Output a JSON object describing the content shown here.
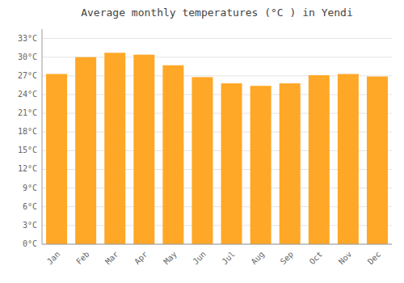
{
  "chart_data": {
    "type": "bar",
    "title": "Average monthly temperatures (°C ) in Yendi",
    "categories": [
      "Jan",
      "Feb",
      "Mar",
      "Apr",
      "May",
      "Jun",
      "Jul",
      "Aug",
      "Sep",
      "Oct",
      "Nov",
      "Dec"
    ],
    "values": [
      27.3,
      30.0,
      30.7,
      30.4,
      28.7,
      26.8,
      25.8,
      25.4,
      25.8,
      27.1,
      27.3,
      26.9
    ],
    "color": "#FFA726",
    "ylim": [
      0,
      34.5
    ],
    "yticks": [
      {
        "value": 0,
        "label": "0°C"
      },
      {
        "value": 3,
        "label": "3°C"
      },
      {
        "value": 6,
        "label": "6°C"
      },
      {
        "value": 9,
        "label": "9°C"
      },
      {
        "value": 12,
        "label": "12°C"
      },
      {
        "value": 15,
        "label": "15°C"
      },
      {
        "value": 18,
        "label": "18°C"
      },
      {
        "value": 21,
        "label": "21°C"
      },
      {
        "value": 24,
        "label": "24°C"
      },
      {
        "value": 27,
        "label": "27°C"
      },
      {
        "value": 30,
        "label": "30°C"
      },
      {
        "value": 33,
        "label": "33°C"
      }
    ],
    "grid": true
  }
}
